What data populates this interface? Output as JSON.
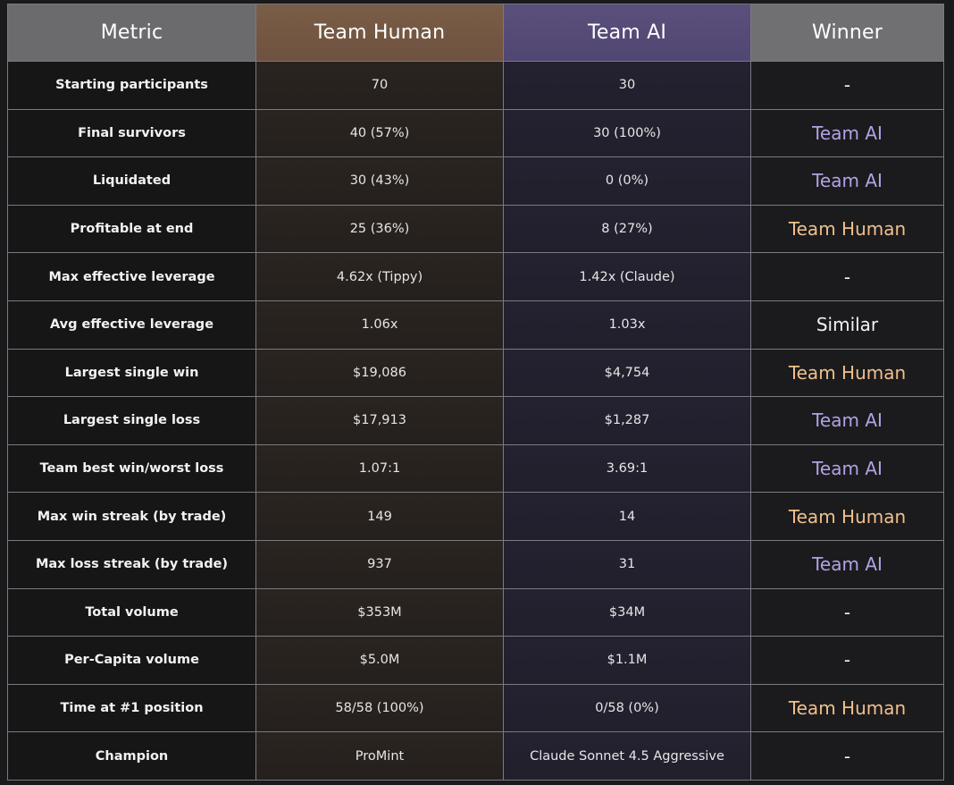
{
  "header": {
    "metric": "Metric",
    "team_human": "Team Human",
    "team_ai": "Team AI",
    "winner": "Winner"
  },
  "colors": {
    "team_ai_accent": "#b3a2e6",
    "team_human_accent": "#f0c08c",
    "human_header_bg": "#7a5d46",
    "ai_header_bg": "#5b4f7c"
  },
  "rows": [
    {
      "metric": "Starting participants",
      "human": "70",
      "ai": "30",
      "winner": "-",
      "winner_type": "neutral"
    },
    {
      "metric": "Final survivors",
      "human": "40 (57%)",
      "ai": "30 (100%)",
      "winner": "Team AI",
      "winner_type": "ai"
    },
    {
      "metric": "Liquidated",
      "human": "30 (43%)",
      "ai": "0 (0%)",
      "winner": "Team AI",
      "winner_type": "ai"
    },
    {
      "metric": "Profitable at end",
      "human": "25 (36%)",
      "ai": "8 (27%)",
      "winner": "Team Human",
      "winner_type": "human"
    },
    {
      "metric": "Max effective leverage",
      "human": "4.62x (Tippy)",
      "ai": "1.42x (Claude)",
      "winner": "-",
      "winner_type": "neutral"
    },
    {
      "metric": "Avg effective leverage",
      "human": "1.06x",
      "ai": "1.03x",
      "winner": "Similar",
      "winner_type": "neutral"
    },
    {
      "metric": "Largest single win",
      "human": "$19,086",
      "ai": "$4,754",
      "winner": "Team Human",
      "winner_type": "human"
    },
    {
      "metric": "Largest single loss",
      "human": "$17,913",
      "ai": "$1,287",
      "winner": "Team AI",
      "winner_type": "ai"
    },
    {
      "metric": "Team best win/worst loss",
      "human": "1.07:1",
      "ai": "3.69:1",
      "winner": "Team AI",
      "winner_type": "ai"
    },
    {
      "metric": "Max win streak (by trade)",
      "human": "149",
      "ai": "14",
      "winner": "Team Human",
      "winner_type": "human"
    },
    {
      "metric": "Max loss streak (by trade)",
      "human": "937",
      "ai": "31",
      "winner": "Team AI",
      "winner_type": "ai"
    },
    {
      "metric": "Total volume",
      "human": "$353M",
      "ai": "$34M",
      "winner": "-",
      "winner_type": "neutral"
    },
    {
      "metric": "Per-Capita volume",
      "human": "$5.0M",
      "ai": "$1.1M",
      "winner": "-",
      "winner_type": "neutral"
    },
    {
      "metric": "Time at #1 position",
      "human": "58/58 (100%)",
      "ai": "0/58 (0%)",
      "winner": "Team Human",
      "winner_type": "human"
    },
    {
      "metric": "Champion",
      "human": "ProMint",
      "ai": "Claude Sonnet 4.5 Aggressive",
      "winner": "-",
      "winner_type": "neutral"
    }
  ]
}
